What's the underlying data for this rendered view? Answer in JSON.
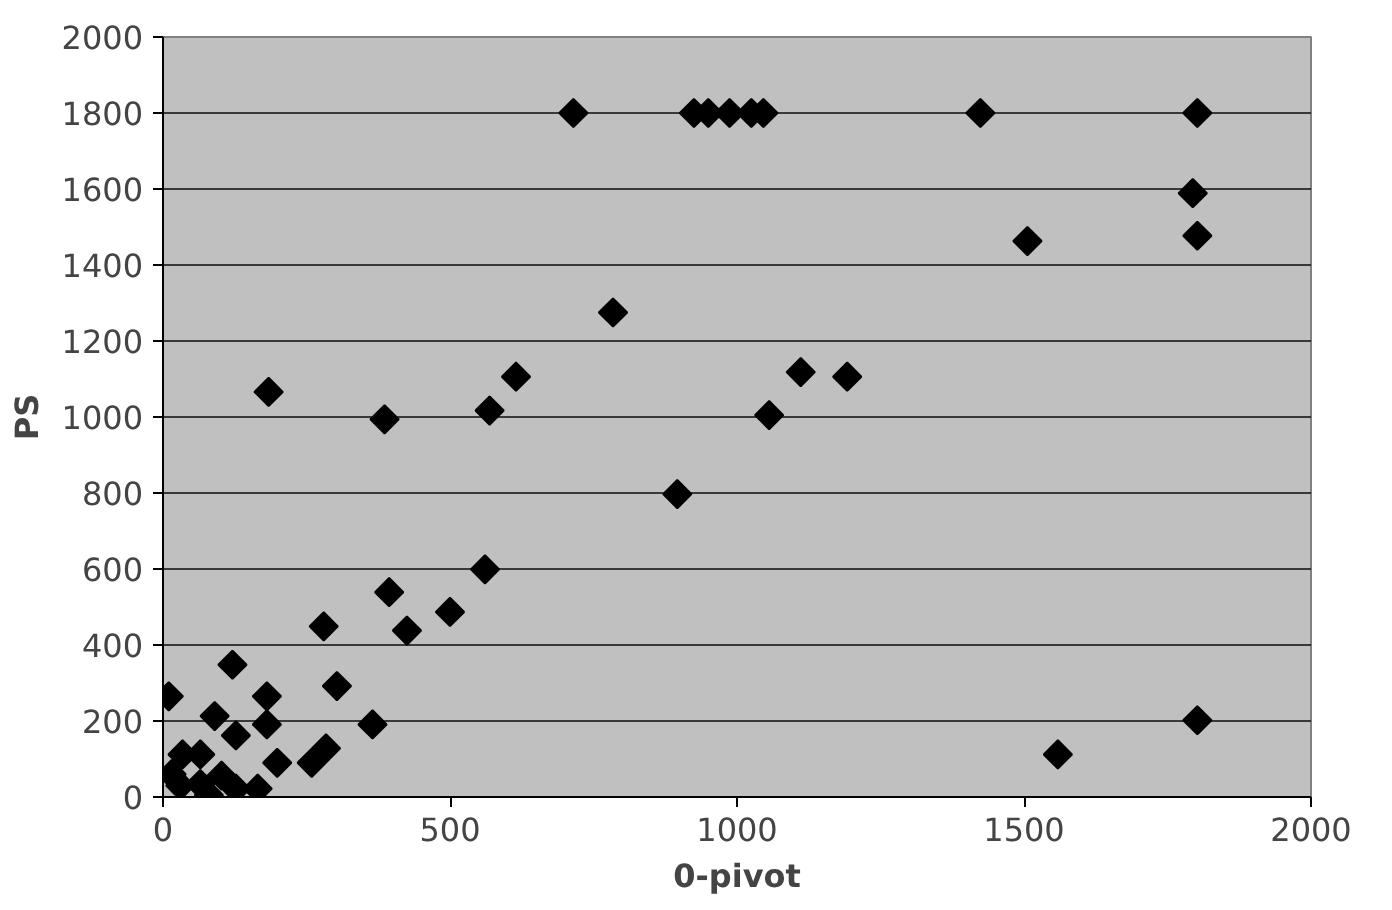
{
  "chart_data": {
    "type": "scatter",
    "xlabel": "0-pivot",
    "ylabel": "PS",
    "xlim": [
      0,
      2000
    ],
    "ylim": [
      0,
      2000
    ],
    "xticks": [
      0,
      500,
      1000,
      1500,
      2000
    ],
    "yticks": [
      0,
      200,
      400,
      600,
      800,
      1000,
      1200,
      1400,
      1600,
      1800,
      2000
    ],
    "grid": "y",
    "marker": "diamond",
    "series": [
      {
        "color": "#000000",
        "x": [
          715,
          925,
          950,
          987,
          1025,
          1046,
          1424,
          1802,
          1794,
          1802,
          1506,
          784,
          1111,
          1192,
          1056,
          184,
          386,
          569,
          615,
          896,
          561,
          394,
          280,
          425,
          500,
          303,
          10,
          121,
          90,
          181,
          181,
          127,
          365,
          199,
          259,
          284,
          165,
          127,
          65,
          34,
          65,
          102,
          30,
          15,
          80,
          1559,
          1802
        ],
        "values": [
          1800,
          1800,
          1800,
          1800,
          1800,
          1800,
          1800,
          1800,
          1589,
          1477,
          1463,
          1275,
          1118,
          1106,
          1005,
          1066,
          994,
          1017,
          1106,
          797,
          599,
          539,
          449,
          438,
          487,
          292,
          265,
          348,
          213,
          265,
          191,
          162,
          191,
          90,
          90,
          128,
          22,
          22,
          34,
          112,
          112,
          56,
          30,
          60,
          5,
          112,
          202
        ]
      }
    ]
  }
}
